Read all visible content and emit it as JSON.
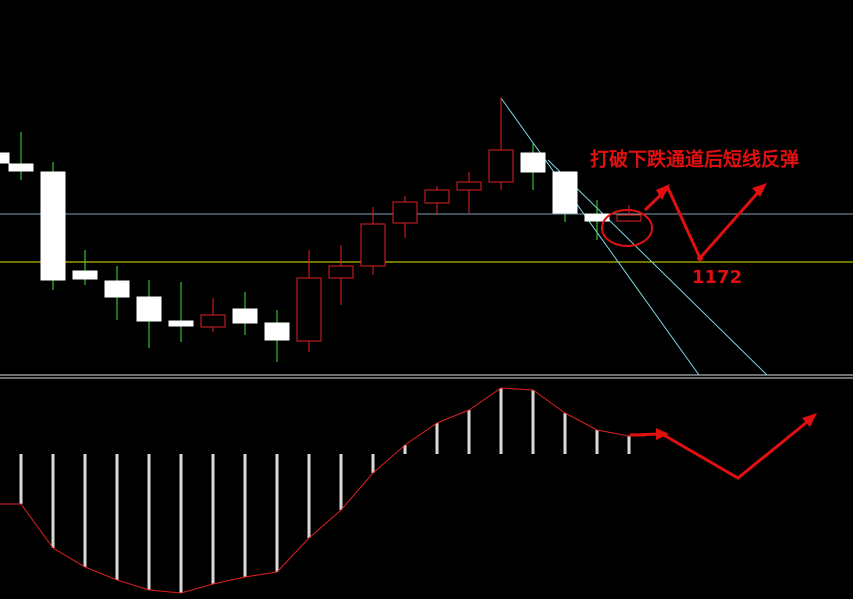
{
  "annotation": {
    "text": "打破下跌通道后短线反弹",
    "level": "1172"
  }
}
